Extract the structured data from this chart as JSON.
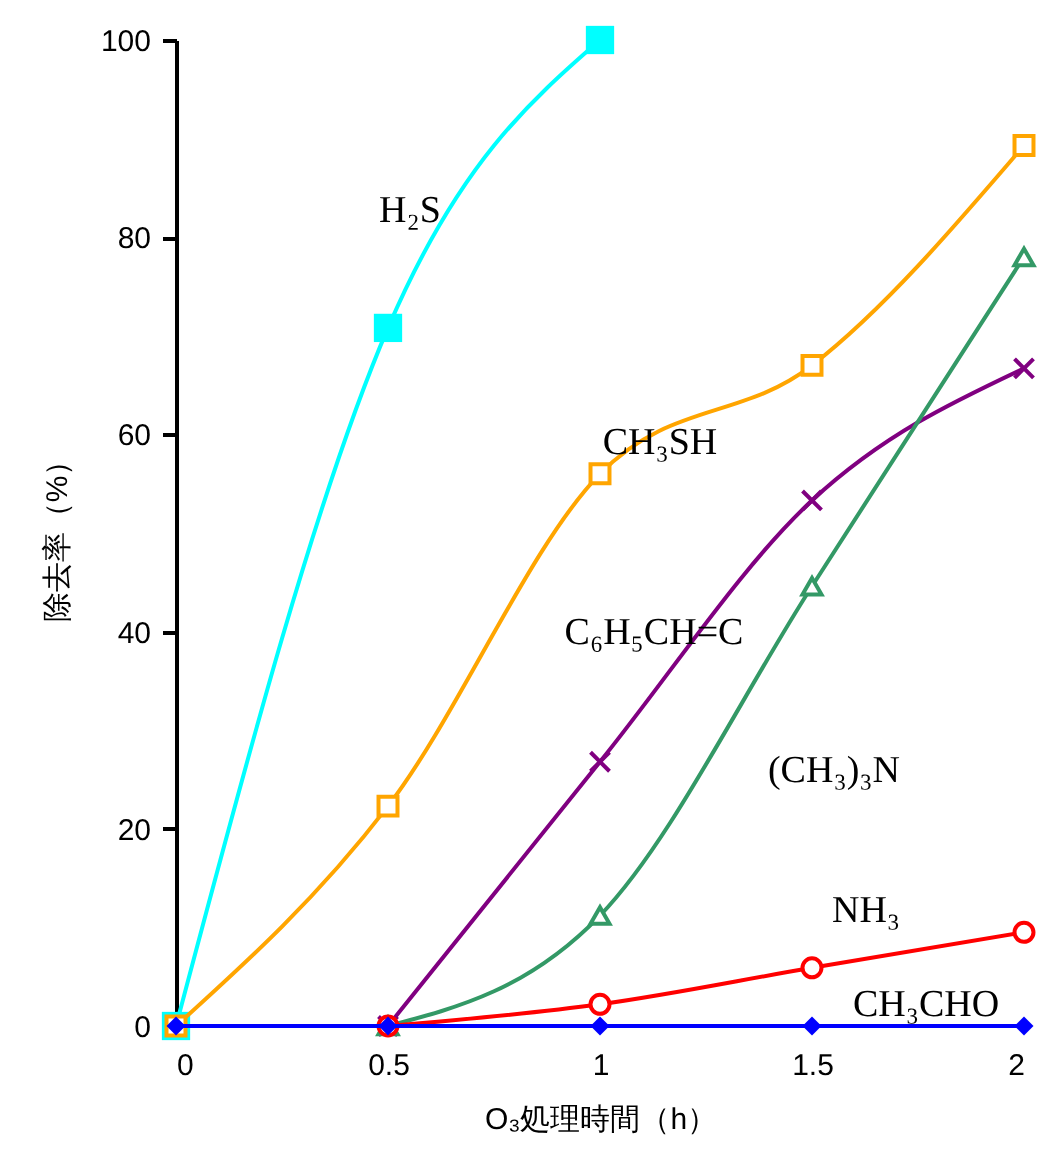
{
  "chart_data": {
    "type": "line",
    "xlabel": "O₃処理時間（h）",
    "ylabel": "除去率（%）",
    "xlim": [
      0,
      2
    ],
    "xticks": [
      0,
      0.5,
      1,
      1.5,
      2
    ],
    "ylim": [
      0,
      100
    ],
    "yticks": [
      0,
      20,
      40,
      60,
      80,
      100
    ],
    "series": [
      {
        "name": "H₂S",
        "color": "#00ffff",
        "marker": "square",
        "x": [
          0,
          0.5,
          1
        ],
        "values": [
          0,
          70.8,
          100
        ]
      },
      {
        "name": "CH₃SH",
        "color": "#ffa500",
        "marker": "square",
        "x": [
          0,
          0.5,
          1,
          1.5,
          2
        ],
        "values": [
          0,
          22.3,
          56,
          67,
          89.3
        ]
      },
      {
        "name": "C₆H₅CH=C",
        "color": "#800080",
        "marker": "cross",
        "x": [
          0.5,
          1,
          1.5,
          2
        ],
        "values": [
          0,
          26.8,
          53.3,
          66.7
        ]
      },
      {
        "name": "(CH₃)₃N",
        "color": "#339966",
        "marker": "triangle",
        "x": [
          0.5,
          1,
          1.5,
          2
        ],
        "values": [
          0,
          11.2,
          44.6,
          78
        ]
      },
      {
        "name": "NH₃",
        "color": "#ff0000",
        "marker": "circle",
        "x": [
          0.5,
          1,
          1.5,
          2
        ],
        "values": [
          0,
          2.2,
          5.9,
          9.5
        ]
      },
      {
        "name": "CH₃CHO",
        "color": "#0000ff",
        "marker": "diamond",
        "x": [
          0,
          0.5,
          1,
          1.5,
          2
        ],
        "values": [
          0,
          0,
          0,
          0,
          0
        ]
      }
    ]
  }
}
